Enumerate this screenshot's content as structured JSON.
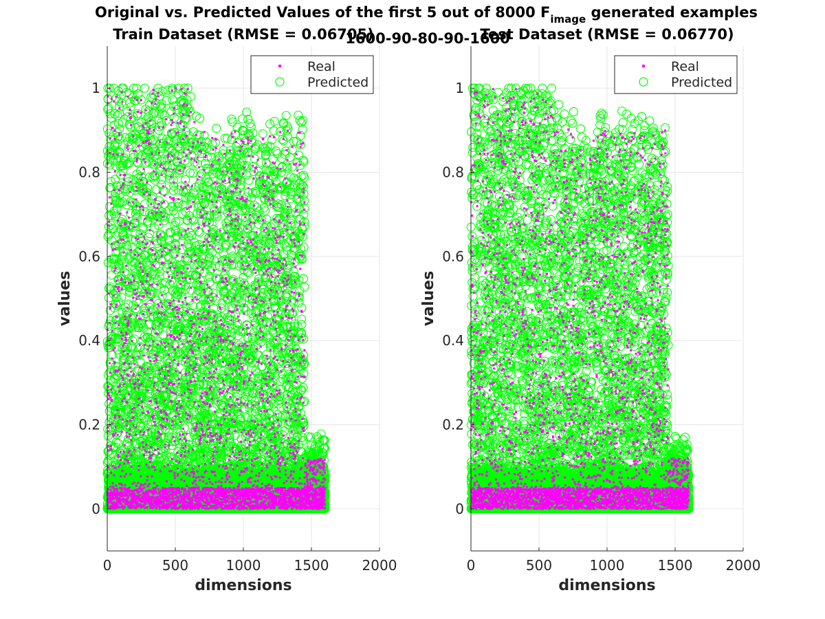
{
  "figure": {
    "suptitle_main": "Original vs. Predicted Values of the first 5 out of 8000 F",
    "suptitle_sub": "image",
    "suptitle_tail": " generated examples",
    "suptitle_line2": "1600-90-80-90-1600"
  },
  "colors": {
    "real": "#ff00ff",
    "predicted": "#00ff00",
    "grid": "#e6e6e6",
    "axis": "#262626"
  },
  "chart_data": [
    {
      "type": "scatter",
      "title": "Train Dataset (RMSE = 0.06705)",
      "xlabel": "dimensions",
      "ylabel": "values",
      "xlim": [
        0,
        2000
      ],
      "ylim": [
        -0.1,
        1.1
      ],
      "xticks": [
        "0",
        "500",
        "1000",
        "1500",
        "2000"
      ],
      "yticks": [
        "0",
        "0.2",
        "0.4",
        "0.6",
        "0.8",
        "1"
      ],
      "grid": true,
      "legend_position": "top-right",
      "series": [
        {
          "name": "Real",
          "marker": "point",
          "color": "#ff00ff"
        },
        {
          "name": "Predicted",
          "marker": "circle",
          "color": "#00ff00"
        }
      ],
      "x_range_of_points": [
        1,
        1600
      ],
      "points_per_series": 8000
    },
    {
      "type": "scatter",
      "title": "Test Dataset (RMSE = 0.06770)",
      "xlabel": "dimensions",
      "ylabel": "values",
      "xlim": [
        0,
        2000
      ],
      "ylim": [
        -0.1,
        1.1
      ],
      "xticks": [
        "0",
        "500",
        "1000",
        "1500",
        "2000"
      ],
      "yticks": [
        "0",
        "0.2",
        "0.4",
        "0.6",
        "0.8",
        "1"
      ],
      "grid": true,
      "legend_position": "top-right",
      "series": [
        {
          "name": "Real",
          "marker": "point",
          "color": "#ff00ff"
        },
        {
          "name": "Predicted",
          "marker": "circle",
          "color": "#00ff00"
        }
      ],
      "x_range_of_points": [
        1,
        1600
      ],
      "points_per_series": 8000
    }
  ]
}
